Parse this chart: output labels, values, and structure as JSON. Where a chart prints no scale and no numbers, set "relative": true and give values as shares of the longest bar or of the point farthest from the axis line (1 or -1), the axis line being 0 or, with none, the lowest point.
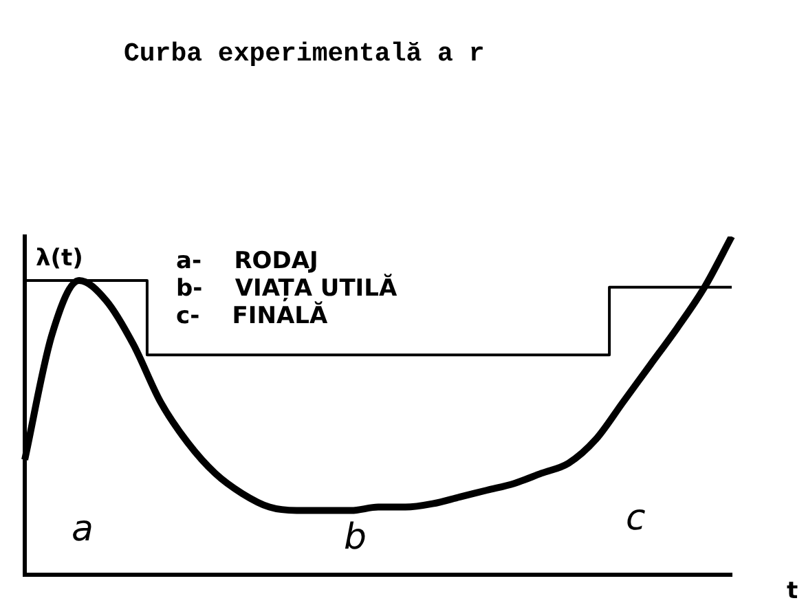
{
  "chart_data": {
    "type": "line",
    "title": "Curba experimentală a r",
    "xlabel": "t",
    "ylabel": "λ(t)",
    "relative": true,
    "legend": false,
    "grid": false,
    "marker": "none",
    "annotations": [
      "a- RODAJ",
      "b- VIAȚA UTILĂ",
      "c- FINALĂ",
      "a",
      "b",
      "c"
    ],
    "categories": [
      null,
      null,
      null,
      null,
      null,
      null,
      null,
      null,
      null,
      null,
      null,
      null,
      null,
      null,
      null,
      null,
      null,
      null,
      null,
      null,
      null,
      null,
      null,
      null,
      null,
      null,
      null
    ],
    "series": [
      {
        "type": "step",
        "color": "#000000",
        "values": [
          0.87,
          0.87,
          0.87,
          0.87,
          0.87,
          0.65,
          0.65,
          0.65,
          0.65,
          0.65,
          0.65,
          0.65,
          0.65,
          0.65,
          0.65,
          0.65,
          0.65,
          0.65,
          0.65,
          0.65,
          0.65,
          0.65,
          0.85,
          0.85,
          0.85,
          0.85,
          0.85
        ]
      },
      {
        "type": "line",
        "color": "#000000",
        "values": [
          0.34,
          0.71,
          0.87,
          0.81,
          0.68,
          0.51,
          0.39,
          0.3,
          0.24,
          0.2,
          0.19,
          0.19,
          0.19,
          0.2,
          0.2,
          0.21,
          0.23,
          0.25,
          0.27,
          0.3,
          0.33,
          0.4,
          0.51,
          0.62,
          0.73,
          0.85,
          1
        ]
      }
    ]
  }
}
